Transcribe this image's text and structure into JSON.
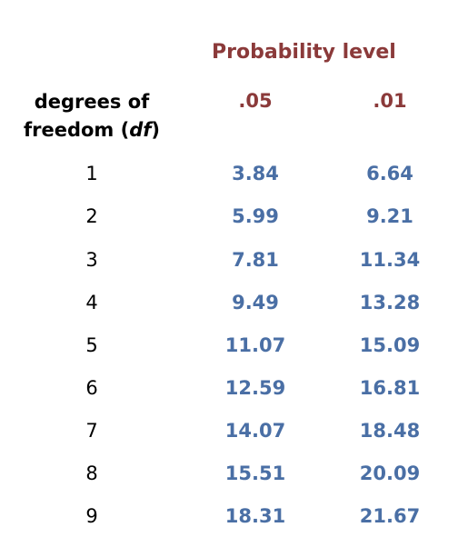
{
  "table": {
    "probability_heading": "Probability level",
    "df_heading_line1": "degrees of",
    "df_heading_line2_prefix": "freedom (",
    "df_heading_line2_italic": "df",
    "df_heading_line2_suffix": ")",
    "col_05": ".05",
    "col_01": ".01",
    "rows": [
      {
        "df": "1",
        "p05": "3.84",
        "p01": "6.64"
      },
      {
        "df": "2",
        "p05": "5.99",
        "p01": "9.21"
      },
      {
        "df": "3",
        "p05": "7.81",
        "p01": "11.34"
      },
      {
        "df": "4",
        "p05": "9.49",
        "p01": "13.28"
      },
      {
        "df": "5",
        "p05": "11.07",
        "p01": "15.09"
      },
      {
        "df": "6",
        "p05": "12.59",
        "p01": "16.81"
      },
      {
        "df": "7",
        "p05": "14.07",
        "p01": "18.48"
      },
      {
        "df": "8",
        "p05": "15.51",
        "p01": "20.09"
      },
      {
        "df": "9",
        "p05": "18.31",
        "p01": "21.67"
      }
    ]
  },
  "colors": {
    "heading_accent": "#8b3a3a",
    "value_text": "#4a6fa5",
    "label_text": "#000000"
  }
}
